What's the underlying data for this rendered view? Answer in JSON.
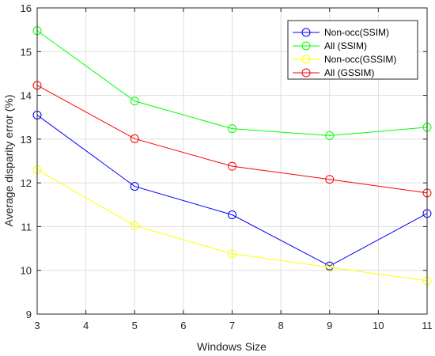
{
  "chart_data": {
    "type": "line",
    "title": "",
    "xlabel": "Windows Size",
    "ylabel": "Average disparity error (%)",
    "x": [
      3,
      5,
      7,
      9,
      11
    ],
    "xlim": [
      3,
      11
    ],
    "ylim": [
      9,
      16
    ],
    "xticks": [
      "3",
      "4",
      "5",
      "6",
      "7",
      "8",
      "9",
      "10",
      "11"
    ],
    "yticks": [
      "9",
      "10",
      "11",
      "12",
      "13",
      "14",
      "15",
      "16"
    ],
    "grid": true,
    "legend_position": "top-right",
    "series": [
      {
        "name": "Non-occ(SSIM)",
        "color": "#0000ff",
        "marker": "circle",
        "values": [
          13.55,
          11.92,
          11.27,
          10.1,
          11.3
        ]
      },
      {
        "name": "All (SSIM)",
        "color": "#00ff00",
        "marker": "circle",
        "values": [
          15.48,
          13.87,
          13.24,
          13.08,
          13.27
        ]
      },
      {
        "name": "Non-occ(GSSIM)",
        "color": "#ffff00",
        "marker": "circle",
        "values": [
          12.3,
          11.02,
          10.38,
          10.07,
          9.76
        ]
      },
      {
        "name": "All (GSSIM)",
        "color": "#ff0000",
        "marker": "circle",
        "values": [
          14.23,
          13.01,
          12.38,
          12.08,
          11.77
        ]
      }
    ]
  }
}
